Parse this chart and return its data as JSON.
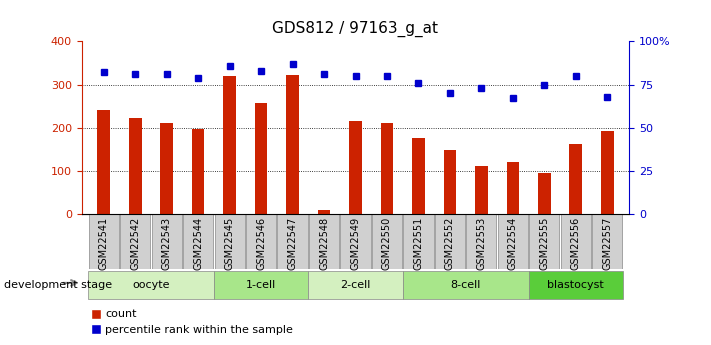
{
  "title": "GDS812 / 97163_g_at",
  "categories": [
    "GSM22541",
    "GSM22542",
    "GSM22543",
    "GSM22544",
    "GSM22545",
    "GSM22546",
    "GSM22547",
    "GSM22548",
    "GSM22549",
    "GSM22550",
    "GSM22551",
    "GSM22552",
    "GSM22553",
    "GSM22554",
    "GSM22555",
    "GSM22556",
    "GSM22557"
  ],
  "bar_values": [
    240,
    222,
    210,
    197,
    320,
    258,
    322,
    10,
    215,
    210,
    175,
    148,
    112,
    120,
    95,
    162,
    193
  ],
  "dot_values": [
    82,
    81,
    81,
    79,
    86,
    83,
    87,
    81,
    80,
    80,
    76,
    70,
    73,
    67,
    75,
    80,
    68
  ],
  "bar_color": "#cc2200",
  "dot_color": "#0000cc",
  "ylim_left": [
    0,
    400
  ],
  "ylim_right": [
    0,
    100
  ],
  "yticks_left": [
    0,
    100,
    200,
    300,
    400
  ],
  "yticks_right": [
    0,
    25,
    50,
    75,
    100
  ],
  "yticklabels_right": [
    "0",
    "25",
    "50",
    "75",
    "100%"
  ],
  "grid_values": [
    100,
    200,
    300
  ],
  "stage_groups": [
    {
      "label": "oocyte",
      "start": 0,
      "end": 4,
      "color": "#d4f0c0"
    },
    {
      "label": "1-cell",
      "start": 4,
      "end": 7,
      "color": "#a8e68a"
    },
    {
      "label": "2-cell",
      "start": 7,
      "end": 10,
      "color": "#d4f0c0"
    },
    {
      "label": "8-cell",
      "start": 10,
      "end": 14,
      "color": "#a8e68a"
    },
    {
      "label": "blastocyst",
      "start": 14,
      "end": 17,
      "color": "#5acd3a"
    }
  ],
  "development_stage_label": "development stage",
  "legend_bar_label": "count",
  "legend_dot_label": "percentile rank within the sample",
  "tick_label_bg": "#d0d0d0",
  "bar_width": 0.4,
  "figsize": [
    7.11,
    3.45
  ],
  "dpi": 100
}
